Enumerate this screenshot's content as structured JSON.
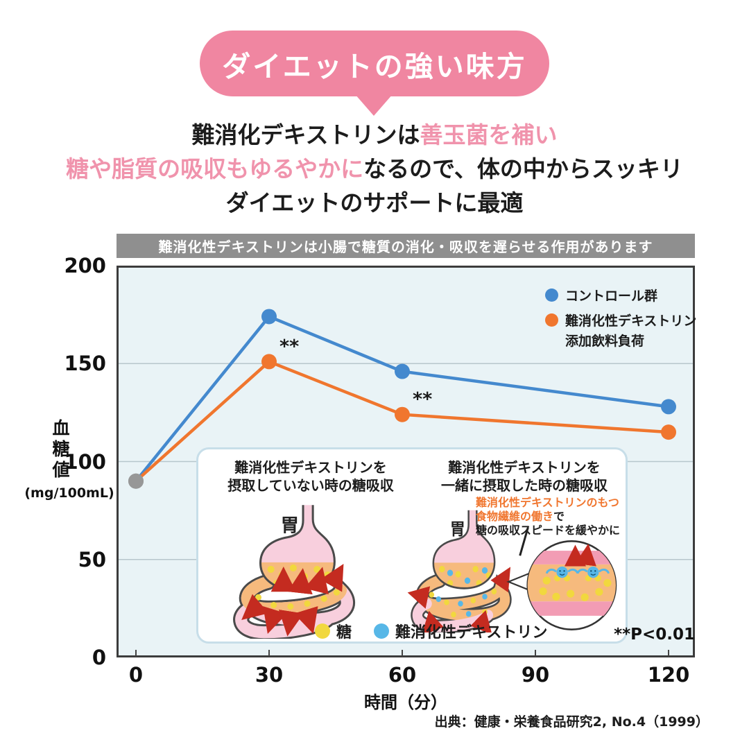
{
  "banner": {
    "label": "ダイエットの強い味方"
  },
  "intro": {
    "line1_black": "難消化デキストリンは",
    "line1_pink": "善玉菌を補い",
    "line2_pink": "糖や脂質の吸収もゆるやかに",
    "line2_black": "なるので、体の中からスッキリ",
    "line3_black": "ダイエットのサポートに最適"
  },
  "chart_data": {
    "type": "line",
    "title": "難消化性デキストリンは小腸で糖質の消化・吸収を遅らせる作用があります",
    "x": [
      0,
      30,
      60,
      120
    ],
    "series": [
      {
        "name": "コントロール群",
        "color": "#4489CE",
        "values": [
          90,
          174,
          146,
          128
        ]
      },
      {
        "name": "難消化性デキストリン添加飲料負荷",
        "color": "#F0762E",
        "values": [
          90,
          151,
          124,
          115
        ]
      }
    ],
    "shared_start_color": "#979797",
    "xlabel": "時間（分）",
    "ylabel": "血糖値",
    "ylabel_unit": "(mg/100mL)",
    "x_ticks": [
      0,
      30,
      60,
      90,
      120
    ],
    "y_ticks": [
      0,
      50,
      100,
      150,
      200
    ],
    "ylim": [
      0,
      200
    ],
    "grid": "horizontal",
    "legend_position": "top-right-inside",
    "plot_bg": "#E9F3F6",
    "legend": [
      {
        "line1": "コントロール群",
        "line2": ""
      },
      {
        "line1": "難消化性デキストリン",
        "line2": "添加飲料負荷"
      }
    ],
    "annotations": [
      {
        "series": 1,
        "point_index": 1,
        "text": "**"
      },
      {
        "series": 1,
        "point_index": 2,
        "text": "**"
      }
    ],
    "significance_note": "**P<0.01"
  },
  "inset": {
    "left_title_line1": "難消化性デキストリンを",
    "left_title_line2": "摂取していない時の糖吸収",
    "right_title_line1": "難消化性デキストリンを",
    "right_title_line2": "一緒に摂取した時の糖吸収",
    "stomach_label": "胃",
    "callout": {
      "orange_line1": "難消化性デキストリンのもつ",
      "orange_line2": "食物繊維の働き",
      "black_suffix": "で",
      "black_line2": "糖の吸収スピードを緩やかに"
    },
    "legend": {
      "sugar": "糖",
      "dextrin": "難消化性デキストリン"
    }
  },
  "source": "出典：健康・栄養食品研究2, No.4（1999）",
  "colors": {
    "banner_pink": "#F086A1",
    "highlight_pink": "#F093AC",
    "header_gray": "#8F8F8F",
    "control_blue": "#4489CE",
    "dextrin_orange": "#F0762E",
    "start_dot_gray": "#979797",
    "sugar_yellow": "#F1D83E",
    "dextrin_dot_blue": "#57B7E7",
    "arrow_red": "#C42B20"
  }
}
